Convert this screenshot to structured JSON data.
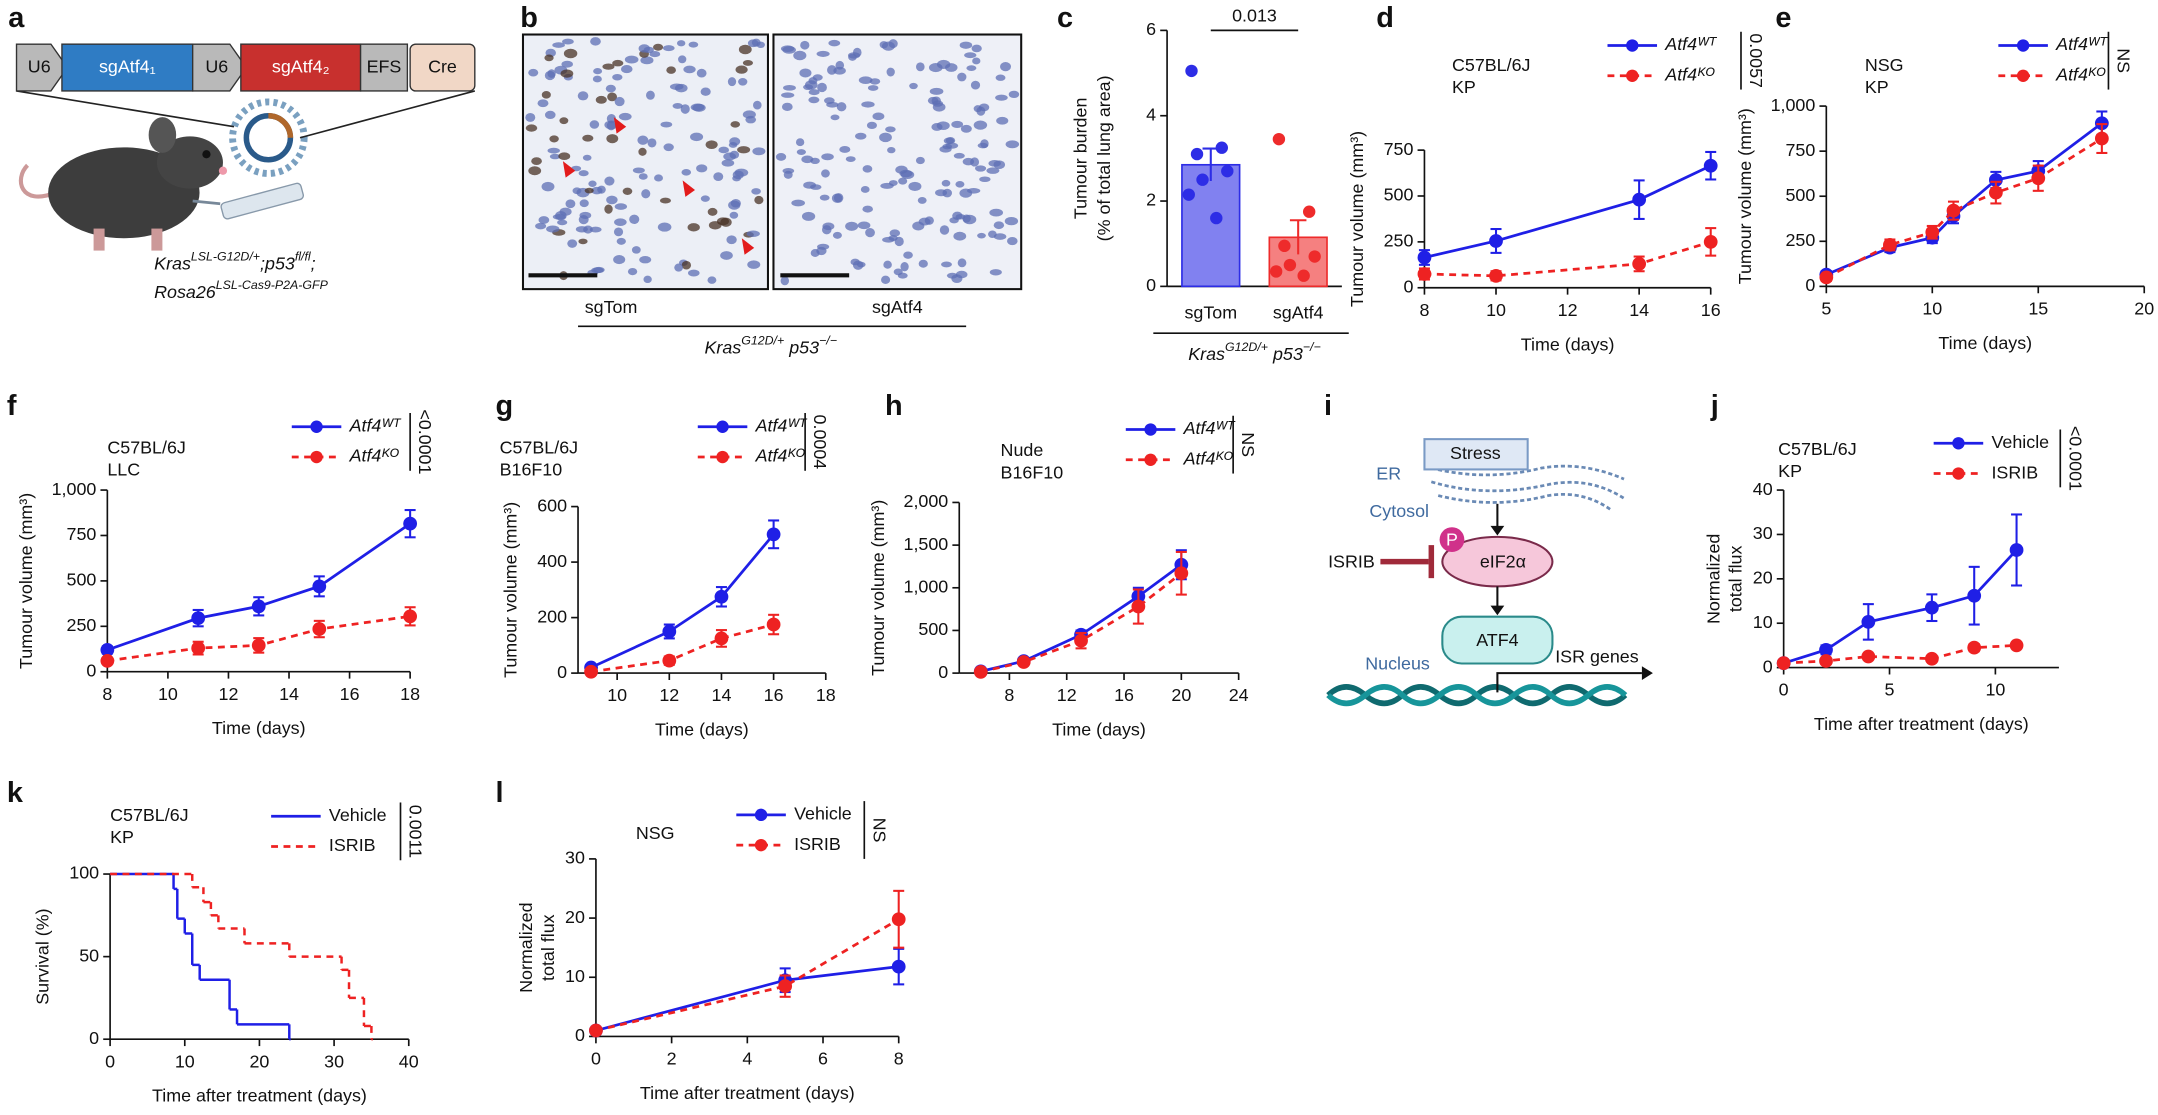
{
  "figure": {
    "a": {
      "label": "a",
      "construct": [
        "U6",
        "sgAtf4₁",
        "U6",
        "sgAtf4₂",
        "EFS",
        "Cre"
      ],
      "genotype": [
        [
          "Kras",
          "LSL-G12D/+",
          ";p53",
          "fl/fl",
          ";"
        ],
        [
          "Rosa26",
          "LSL-Cas9-P2A-GFP"
        ]
      ]
    },
    "b": {
      "label": "b",
      "images": [
        "sgTom",
        "sgAtf4"
      ],
      "group_label": [
        "Kras",
        "G12D/+",
        " p53",
        "−/−"
      ]
    },
    "i": {
      "label": "i",
      "stress": "Stress",
      "er": "ER",
      "cytosol": "Cytosol",
      "phospho": "P",
      "eif2a": "eIF2α",
      "isrib": "ISRIB",
      "atf4": "ATF4",
      "nucleus": "Nucleus",
      "isr_genes": "ISR genes"
    }
  },
  "chart_data": [
    {
      "panel": "c",
      "type": "bar",
      "ylabel": [
        "Tumour burden",
        "(% of total lung area)"
      ],
      "categories": [
        "sgTom",
        "sgAtf4"
      ],
      "values": [
        2.85,
        1.15
      ],
      "errors": [
        0.38,
        0.4
      ],
      "points": [
        [
          5.05,
          3.25,
          3.1,
          2.7,
          2.5,
          2.15,
          1.6
        ],
        [
          3.45,
          1.75,
          0.95,
          0.7,
          0.5,
          0.35,
          0.25
        ]
      ],
      "colors": [
        "#2d2de6",
        "#ee2b2b"
      ],
      "ylim": [
        0,
        6
      ],
      "yticks": [
        0,
        2,
        4,
        6
      ],
      "p_value": "0.013",
      "group_label": [
        "Kras",
        "G12D/+",
        " p53",
        "−/−"
      ]
    },
    {
      "panel": "d",
      "type": "line",
      "annotation": [
        "C57BL/6J",
        "KP"
      ],
      "xlabel": "Time (days)",
      "ylabel": "Tumour volume (mm³)",
      "x": [
        8,
        10,
        14,
        16
      ],
      "series": [
        {
          "name": "Atf4ᵂᵀ",
          "color": "#1f1fe6",
          "line_style": "solid",
          "values": [
            165,
            255,
            480,
            665
          ],
          "errors": [
            40,
            65,
            105,
            75
          ]
        },
        {
          "name": "Atf4ᴷᴼ",
          "color": "#ee2222",
          "line_style": "dashed",
          "values": [
            75,
            65,
            130,
            250
          ],
          "errors": [
            30,
            25,
            40,
            75
          ]
        }
      ],
      "xlim": [
        8,
        16
      ],
      "xticks": [
        8,
        10,
        12,
        14,
        16
      ],
      "ylim": [
        0,
        750
      ],
      "yticks": [
        0,
        250,
        500,
        750
      ],
      "p_value": "0.0057"
    },
    {
      "panel": "e",
      "type": "line",
      "annotation": [
        "NSG",
        "KP"
      ],
      "xlabel": "Time (days)",
      "ylabel": "Tumour volume (mm³)",
      "x": [
        5,
        8,
        10,
        11,
        13,
        15,
        18
      ],
      "series": [
        {
          "name": "Atf4ᵂᵀ",
          "color": "#1f1fe6",
          "line_style": "solid",
          "values": [
            65,
            215,
            270,
            390,
            590,
            640,
            905
          ],
          "errors": [
            20,
            25,
            30,
            40,
            45,
            55,
            65
          ]
        },
        {
          "name": "Atf4ᴷᴼ",
          "color": "#ee2222",
          "line_style": "dashed",
          "values": [
            50,
            230,
            300,
            420,
            520,
            600,
            820
          ],
          "errors": [
            20,
            30,
            35,
            50,
            60,
            70,
            80
          ]
        }
      ],
      "xlim": [
        5,
        20
      ],
      "xticks": [
        5,
        10,
        15,
        20
      ],
      "ylim": [
        0,
        1000
      ],
      "yticks": [
        0,
        250,
        500,
        750,
        {
          "value": 1000,
          "label": "1,000"
        }
      ],
      "p_value": "NS"
    },
    {
      "panel": "f",
      "type": "line",
      "annotation": [
        "C57BL/6J",
        "LLC"
      ],
      "xlabel": "Time (days)",
      "ylabel": "Tumour volume (mm³)",
      "x": [
        8,
        11,
        13,
        15,
        18
      ],
      "series": [
        {
          "name": "Atf4ᵂᵀ",
          "color": "#1f1fe6",
          "line_style": "solid",
          "values": [
            120,
            295,
            360,
            470,
            815
          ],
          "errors": [
            20,
            45,
            50,
            55,
            75
          ]
        },
        {
          "name": "Atf4ᴷᴼ",
          "color": "#ee2222",
          "line_style": "dashed",
          "values": [
            60,
            130,
            145,
            235,
            305
          ],
          "errors": [
            15,
            35,
            40,
            45,
            50
          ]
        }
      ],
      "xlim": [
        8,
        18
      ],
      "xticks": [
        8,
        10,
        12,
        14,
        16,
        18
      ],
      "ylim": [
        0,
        1000
      ],
      "yticks": [
        0,
        250,
        500,
        750,
        {
          "value": 1000,
          "label": "1,000"
        }
      ],
      "p_value": "<0.0001"
    },
    {
      "panel": "g",
      "type": "line",
      "annotation": [
        "C57BL/6J",
        "B16F10"
      ],
      "xlabel": "Time (days)",
      "ylabel": "Tumour volume (mm³)",
      "x": [
        9,
        12,
        14,
        16
      ],
      "series": [
        {
          "name": "Atf4ᵂᵀ",
          "color": "#1f1fe6",
          "line_style": "solid",
          "values": [
            20,
            150,
            275,
            500
          ],
          "errors": [
            5,
            25,
            35,
            50
          ]
        },
        {
          "name": "Atf4ᴷᴼ",
          "color": "#ee2222",
          "line_style": "dashed",
          "values": [
            5,
            45,
            125,
            175
          ],
          "errors": [
            3,
            15,
            30,
            35
          ]
        }
      ],
      "xlim": [
        8.5,
        18
      ],
      "xticks": [
        10,
        12,
        14,
        16,
        18
      ],
      "ylim": [
        0,
        600
      ],
      "yticks": [
        0,
        200,
        400,
        600
      ],
      "p_value": "0.0004"
    },
    {
      "panel": "h",
      "type": "line",
      "annotation": [
        "Nude",
        "B16F10"
      ],
      "xlabel": "Time (days)",
      "ylabel": "Tumour volume (mm³)",
      "x": [
        6,
        9,
        13,
        17,
        20
      ],
      "series": [
        {
          "name": "Atf4ᵂᵀ",
          "color": "#1f1fe6",
          "line_style": "solid",
          "values": [
            20,
            140,
            450,
            900,
            1270
          ],
          "errors": [
            10,
            20,
            50,
            100,
            170
          ]
        },
        {
          "name": "Atf4ᴷᴼ",
          "color": "#ee2222",
          "line_style": "dashed",
          "values": [
            15,
            130,
            380,
            780,
            1170
          ],
          "errors": [
            10,
            20,
            90,
            200,
            250
          ]
        }
      ],
      "xlim": [
        4.5,
        24
      ],
      "xticks": [
        8,
        12,
        16,
        20,
        24
      ],
      "ylim": [
        0,
        2000
      ],
      "yticks": [
        0,
        500,
        {
          "value": 1000,
          "label": "1,000"
        },
        {
          "value": 1500,
          "label": "1,500"
        },
        {
          "value": 2000,
          "label": "2,000"
        }
      ],
      "p_value": "NS"
    },
    {
      "panel": "j",
      "type": "line",
      "annotation": [
        "C57BL/6J",
        "KP"
      ],
      "xlabel": "Time after treatment (days)",
      "ylabel": [
        "Normalized",
        "total flux"
      ],
      "x": [
        0,
        2,
        4,
        7,
        9,
        11
      ],
      "series": [
        {
          "name": "Vehicle",
          "color": "#1f1fe6",
          "line_style": "solid",
          "values": [
            1,
            4,
            10.3,
            13.5,
            16.2,
            26.5
          ],
          "errors": [
            0.5,
            1,
            4,
            3,
            6.5,
            8
          ]
        },
        {
          "name": "ISRIB",
          "color": "#ee2222",
          "line_style": "dashed",
          "values": [
            1,
            1.5,
            2.5,
            2,
            4.5,
            5
          ],
          "errors": [
            0.3,
            0.5,
            0.5,
            0.5,
            0.8,
            0.7
          ]
        }
      ],
      "xlim": [
        0,
        13
      ],
      "xticks": [
        0,
        5,
        10
      ],
      "ylim": [
        0,
        40
      ],
      "yticks": [
        0,
        10,
        20,
        30,
        40
      ],
      "p_value": "<0.0001"
    },
    {
      "panel": "k",
      "type": "step",
      "annotation": [
        "C57BL/6J",
        "KP"
      ],
      "xlabel": "Time after treatment (days)",
      "ylabel": "Survival (%)",
      "series": [
        {
          "name": "Vehicle",
          "color": "#1f1fe6",
          "line_style": "solid",
          "x": [
            0,
            8.5,
            9,
            10,
            11,
            12,
            16,
            17,
            24
          ],
          "values": [
            100,
            91,
            73,
            64,
            45,
            36,
            18,
            9,
            0
          ]
        },
        {
          "name": "ISRIB",
          "color": "#ee2222",
          "line_style": "dashed",
          "x": [
            0,
            11,
            12.5,
            13.5,
            14.5,
            18,
            24,
            31,
            32,
            34,
            35
          ],
          "values": [
            100,
            92,
            83,
            75,
            67,
            58,
            50,
            42,
            25,
            8,
            0
          ]
        }
      ],
      "xlim": [
        0,
        40
      ],
      "xticks": [
        0,
        10,
        20,
        30,
        40
      ],
      "ylim": [
        0,
        100
      ],
      "yticks": [
        0,
        50,
        100
      ],
      "p_value": "0.0011"
    },
    {
      "panel": "l",
      "type": "line",
      "annotation": [
        "NSG"
      ],
      "xlabel": "Time after treatment (days)",
      "ylabel": [
        "Normalized",
        "total flux"
      ],
      "x": [
        0,
        5,
        8
      ],
      "series": [
        {
          "name": "Vehicle",
          "color": "#1f1fe6",
          "line_style": "solid",
          "values": [
            1,
            9.5,
            11.8
          ],
          "errors": [
            0.3,
            2,
            3
          ]
        },
        {
          "name": "ISRIB",
          "color": "#ee2222",
          "line_style": "dashed",
          "values": [
            1,
            8.5,
            19.8
          ],
          "errors": [
            0.3,
            1.8,
            4.8
          ]
        }
      ],
      "xlim": [
        0,
        8
      ],
      "xticks": [
        0,
        2,
        4,
        6,
        8
      ],
      "ylim": [
        0,
        30
      ],
      "yticks": [
        0,
        10,
        20,
        30
      ],
      "p_value": "NS"
    }
  ]
}
